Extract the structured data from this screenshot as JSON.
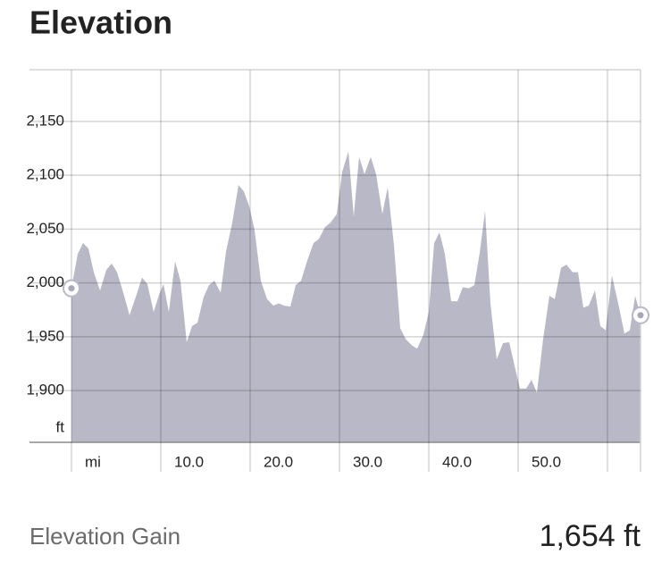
{
  "chart_data": {
    "type": "area",
    "title": "Elevation",
    "y_label": "ft",
    "color": "#b9b8c6",
    "x": [
      0,
      0.7,
      1.3,
      1.9,
      2.5,
      3.2,
      3.9,
      4.5,
      5.1,
      5.8,
      6.5,
      7.2,
      7.9,
      8.5,
      9.2,
      9.8,
      10.3,
      10.9,
      11.6,
      12.2,
      12.9,
      13.5,
      14.1,
      14.8,
      15.4,
      16,
      16.7,
      17.3,
      18,
      18.7,
      19.3,
      19.9,
      20.5,
      21.2,
      21.9,
      22.6,
      23.2,
      23.8,
      24.5,
      25.1,
      25.7,
      26.4,
      27.1,
      27.7,
      28.4,
      29,
      29.7,
      30.3,
      31,
      31.6,
      32.2,
      32.8,
      33.5,
      34.1,
      34.8,
      35.4,
      36.1,
      36.8,
      37.4,
      38.1,
      38.7,
      39.4,
      40,
      40.6,
      41.2,
      41.8,
      42.5,
      43.2,
      43.8,
      44.5,
      45.1,
      45.7,
      46.3,
      46.9,
      47.6,
      48.3,
      49,
      49.6,
      50.2,
      50.9,
      51.5,
      52.1,
      52.8,
      53.5,
      54.1,
      54.8,
      55.4,
      56.1,
      56.7,
      57.3,
      57.9,
      58.6,
      59.2,
      59.8,
      60.5,
      61.2,
      61.9,
      62.5,
      63.1,
      63.7
    ],
    "values": [
      1995,
      2027,
      2037,
      2032,
      2010,
      1993,
      2012,
      2018,
      2010,
      1991,
      1970,
      1987,
      2005,
      1999,
      1973,
      1989,
      1999,
      1973,
      2020,
      2002,
      1945,
      1960,
      1963,
      1987,
      1998,
      2002,
      1991,
      2029,
      2056,
      2091,
      2085,
      2071,
      2049,
      2002,
      1985,
      1979,
      1981,
      1979,
      1978,
      1998,
      2002,
      2021,
      2037,
      2041,
      2052,
      2056,
      2064,
      2103,
      2122,
      2062,
      2117,
      2101,
      2117,
      2101,
      2064,
      2089,
      2035,
      1958,
      1948,
      1942,
      1939,
      1952,
      1973,
      2037,
      2047,
      2027,
      1983,
      1983,
      1996,
      1995,
      1998,
      2028,
      2067,
      1981,
      1929,
      1944,
      1945,
      1923,
      1902,
      1902,
      1910,
      1898,
      1948,
      1988,
      1985,
      2014,
      2017,
      2010,
      2010,
      1977,
      1979,
      1993,
      1960,
      1956,
      2007,
      1981,
      1953,
      1956,
      1988,
      1970
    ],
    "xlim": [
      0,
      63.7
    ],
    "ylim": [
      1852,
      2198
    ],
    "xticks": [
      {
        "value": 0,
        "label": "mi"
      },
      {
        "value": 10,
        "label": "10.0"
      },
      {
        "value": 20,
        "label": "20.0"
      },
      {
        "value": 30,
        "label": "30.0"
      },
      {
        "value": 40,
        "label": "40.0"
      },
      {
        "value": 50,
        "label": "50.0"
      },
      {
        "value": 60,
        "label": null
      }
    ],
    "yticks": [
      {
        "value": 2150,
        "label": "2,150"
      },
      {
        "value": 2100,
        "label": "2,100"
      },
      {
        "value": 2050,
        "label": "2,050"
      },
      {
        "value": 2000,
        "label": "2,000"
      },
      {
        "value": 1950,
        "label": "1,950"
      },
      {
        "value": 1900,
        "label": "1,900"
      }
    ],
    "grid": true
  },
  "summary": {
    "label": "Elevation Gain",
    "value": "1,654 ft"
  }
}
